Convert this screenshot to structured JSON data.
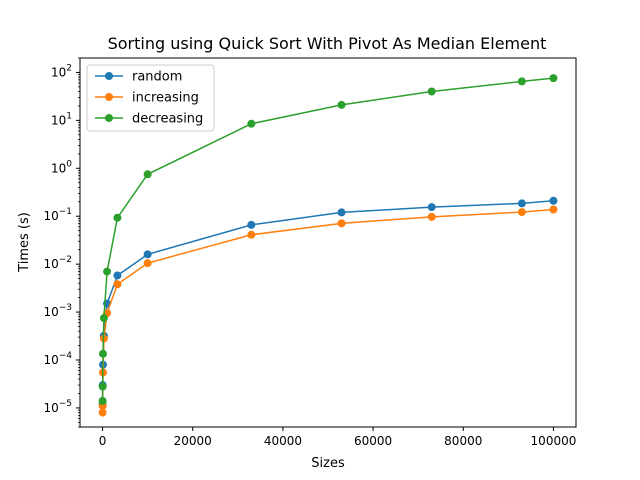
{
  "chart_data": {
    "type": "line",
    "title": "Sorting using Quick Sort With Pivot As Median Element",
    "xlabel": "Sizes",
    "ylabel": "Times (s)",
    "yscale": "log",
    "xlim": [
      -5000,
      105000
    ],
    "ylim": [
      4e-06,
      200
    ],
    "legend": "top-left",
    "grid": false,
    "xticks": [
      0,
      20000,
      40000,
      60000,
      80000,
      100000
    ],
    "xtick_labels": [
      "0",
      "20000",
      "40000",
      "60000",
      "80000",
      "100000"
    ],
    "yticks": [
      1e-05,
      0.0001,
      0.001,
      0.01,
      0.1,
      1,
      10,
      100
    ],
    "ytick_labels": [
      {
        "base": "10",
        "exp": "−5"
      },
      {
        "base": "10",
        "exp": "−4"
      },
      {
        "base": "10",
        "exp": "−3"
      },
      {
        "base": "10",
        "exp": "−2"
      },
      {
        "base": "10",
        "exp": "−1"
      },
      {
        "base": "10",
        "exp": "0"
      },
      {
        "base": "10",
        "exp": "1"
      },
      {
        "base": "10",
        "exp": "2"
      }
    ],
    "x": [
      10,
      30,
      100,
      300,
      1000,
      3300,
      10000,
      33000,
      53000,
      73000,
      93000,
      100000
    ],
    "series": [
      {
        "name": "random",
        "color": "#1f77b4",
        "values": [
          1.2e-05,
          3e-05,
          8e-05,
          0.00032,
          0.0015,
          0.0058,
          0.016,
          0.066,
          0.12,
          0.155,
          0.185,
          0.21
        ]
      },
      {
        "name": "increasing",
        "color": "#ff7f0e",
        "values": [
          8e-06,
          1.1e-05,
          5.5e-05,
          0.00028,
          0.00095,
          0.0038,
          0.0105,
          0.041,
          0.071,
          0.097,
          0.122,
          0.138
        ]
      },
      {
        "name": "decreasing",
        "color": "#2ca02c",
        "values": [
          1.4e-05,
          2.8e-05,
          0.000135,
          0.00075,
          0.007,
          0.093,
          0.75,
          8.5,
          21,
          40,
          65,
          76
        ]
      }
    ]
  }
}
